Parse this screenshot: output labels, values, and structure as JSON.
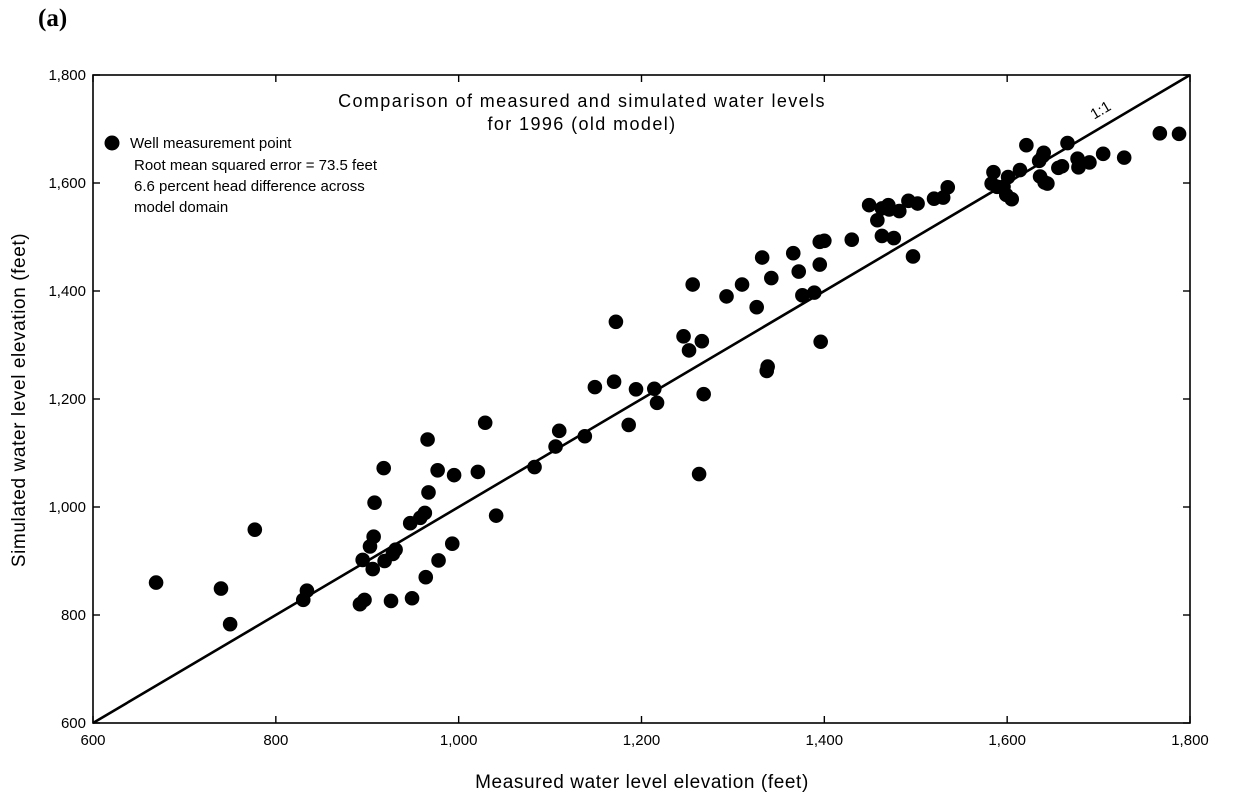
{
  "panel_label": "(a)",
  "chart_data": {
    "type": "scatter",
    "title_lines": [
      "Comparison of measured and simulated water levels",
      "for 1996 (old model)"
    ],
    "xlabel": "Measured water level elevation (feet)",
    "ylabel": "Simulated water level elevation (feet)",
    "xlim": [
      600,
      1800
    ],
    "ylim": [
      600,
      1800
    ],
    "x_ticks": [
      600,
      800,
      1000,
      1200,
      1400,
      1600,
      1800
    ],
    "y_ticks": [
      600,
      800,
      1000,
      1200,
      1400,
      1600,
      1800
    ],
    "x_tick_labels": [
      "600",
      "800",
      "1,000",
      "1,200",
      "1,400",
      "1,600",
      "1,800"
    ],
    "y_tick_labels": [
      "600",
      "800",
      "1,000",
      "1,200",
      "1,400",
      "1,600",
      "1,800"
    ],
    "grid": false,
    "legend": {
      "position": "top-left",
      "marker_label": "Well measurement point",
      "notes": [
        "Root mean squared error = 73.5 feet",
        "6.6 percent head difference across",
        "model domain"
      ]
    },
    "reference_line": {
      "label": "1:1",
      "from": [
        600,
        600
      ],
      "to": [
        1800,
        1800
      ]
    },
    "series": [
      {
        "points": [
          [
            669,
            860
          ],
          [
            740,
            849
          ],
          [
            750,
            783
          ],
          [
            777,
            958
          ],
          [
            830,
            828
          ],
          [
            834,
            845
          ],
          [
            892,
            820
          ],
          [
            895,
            902
          ],
          [
            897,
            828
          ],
          [
            903,
            927
          ],
          [
            906,
            885
          ],
          [
            907,
            945
          ],
          [
            908,
            1008
          ],
          [
            918,
            1072
          ],
          [
            919,
            900
          ],
          [
            926,
            826
          ],
          [
            928,
            913
          ],
          [
            931,
            921
          ],
          [
            947,
            970
          ],
          [
            949,
            831
          ],
          [
            958,
            980
          ],
          [
            963,
            989
          ],
          [
            964,
            870
          ],
          [
            966,
            1125
          ],
          [
            967,
            1027
          ],
          [
            977,
            1068
          ],
          [
            978,
            901
          ],
          [
            993,
            932
          ],
          [
            995,
            1059
          ],
          [
            1021,
            1065
          ],
          [
            1029,
            1156
          ],
          [
            1041,
            984
          ],
          [
            1083,
            1074
          ],
          [
            1106,
            1112
          ],
          [
            1110,
            1141
          ],
          [
            1138,
            1131
          ],
          [
            1149,
            1222
          ],
          [
            1170,
            1232
          ],
          [
            1172,
            1343
          ],
          [
            1186,
            1152
          ],
          [
            1194,
            1218
          ],
          [
            1214,
            1219
          ],
          [
            1217,
            1193
          ],
          [
            1246,
            1316
          ],
          [
            1252,
            1290
          ],
          [
            1256,
            1412
          ],
          [
            1263,
            1061
          ],
          [
            1266,
            1307
          ],
          [
            1268,
            1209
          ],
          [
            1293,
            1390
          ],
          [
            1310,
            1412
          ],
          [
            1326,
            1370
          ],
          [
            1332,
            1462
          ],
          [
            1337,
            1252
          ],
          [
            1338,
            1260
          ],
          [
            1342,
            1424
          ],
          [
            1366,
            1470
          ],
          [
            1372,
            1436
          ],
          [
            1376,
            1392
          ],
          [
            1389,
            1397
          ],
          [
            1395,
            1449
          ],
          [
            1395,
            1491
          ],
          [
            1396,
            1306
          ],
          [
            1400,
            1493
          ],
          [
            1430,
            1495
          ],
          [
            1449,
            1559
          ],
          [
            1458,
            1531
          ],
          [
            1463,
            1502
          ],
          [
            1463,
            1553
          ],
          [
            1470,
            1559
          ],
          [
            1471,
            1551
          ],
          [
            1476,
            1498
          ],
          [
            1482,
            1548
          ],
          [
            1492,
            1567
          ],
          [
            1497,
            1464
          ],
          [
            1502,
            1562
          ],
          [
            1520,
            1571
          ],
          [
            1530,
            1573
          ],
          [
            1535,
            1592
          ],
          [
            1583,
            1599
          ],
          [
            1585,
            1620
          ],
          [
            1589,
            1593
          ],
          [
            1596,
            1593
          ],
          [
            1599,
            1578
          ],
          [
            1601,
            1611
          ],
          [
            1605,
            1570
          ],
          [
            1614,
            1624
          ],
          [
            1621,
            1670
          ],
          [
            1635,
            1641
          ],
          [
            1636,
            1612
          ],
          [
            1639,
            1650
          ],
          [
            1640,
            1656
          ],
          [
            1641,
            1601
          ],
          [
            1644,
            1599
          ],
          [
            1656,
            1628
          ],
          [
            1660,
            1631
          ],
          [
            1666,
            1674
          ],
          [
            1677,
            1645
          ],
          [
            1678,
            1629
          ],
          [
            1690,
            1638
          ],
          [
            1705,
            1654
          ],
          [
            1728,
            1647
          ],
          [
            1767,
            1692
          ],
          [
            1788,
            1691
          ]
        ]
      }
    ]
  }
}
